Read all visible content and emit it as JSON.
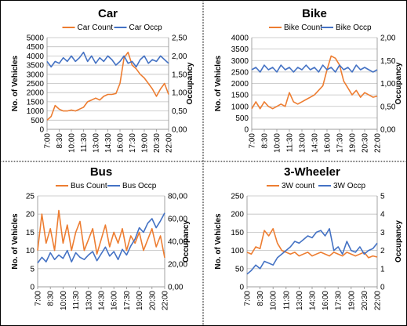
{
  "chart_data": [
    {
      "type": "line",
      "title": "Car",
      "xlabel": "",
      "ylabel": "No. of Vehicles",
      "y2label": "Occupancy",
      "ylim": [
        0,
        5000
      ],
      "yticks": [
        "0",
        "500",
        "1000",
        "1500",
        "2000",
        "2500",
        "3000",
        "3500",
        "4000",
        "4500",
        "5000"
      ],
      "y2lim": [
        0,
        2.5
      ],
      "y2ticks": [
        "0,00",
        "0,50",
        "1,00",
        "1,50",
        "2,00",
        "2,50"
      ],
      "grid": "horizontal",
      "legend_position": "top",
      "x_tick_labels": [
        "7:00",
        "8:30",
        "10:00",
        "11:30",
        "13:00",
        "14:30",
        "16:00",
        "17:30",
        "19:00",
        "20:30",
        "22:00"
      ],
      "x_range": [
        0,
        60
      ],
      "series": [
        {
          "name": "Car Count",
          "axis": "left",
          "color": "#ED7D31",
          "x": [
            0,
            2,
            4,
            6,
            8,
            10,
            12,
            14,
            16,
            18,
            20,
            22,
            24,
            26,
            28,
            30,
            32,
            34,
            36,
            38,
            40,
            42,
            44,
            46,
            48,
            50,
            52,
            54,
            56,
            58,
            60
          ],
          "y": [
            500,
            700,
            1300,
            1100,
            1000,
            1000,
            1050,
            1000,
            1100,
            1200,
            1500,
            1600,
            1700,
            1600,
            1800,
            1900,
            1900,
            1950,
            2500,
            3900,
            4200,
            3500,
            3300,
            3000,
            2800,
            2500,
            2200,
            1800,
            2200,
            2500,
            1900
          ]
        },
        {
          "name": "Car Occp",
          "axis": "right",
          "color": "#4472C4",
          "x": [
            0,
            2,
            4,
            6,
            8,
            10,
            12,
            14,
            16,
            18,
            20,
            22,
            24,
            26,
            28,
            30,
            32,
            34,
            36,
            38,
            40,
            42,
            44,
            46,
            48,
            50,
            52,
            54,
            56,
            58,
            60
          ],
          "y": [
            1.85,
            1.7,
            1.85,
            1.8,
            1.95,
            1.85,
            2.0,
            1.85,
            1.95,
            2.1,
            1.85,
            2.0,
            1.8,
            1.95,
            1.85,
            2.0,
            1.9,
            1.75,
            1.85,
            2.0,
            1.8,
            1.85,
            1.7,
            1.9,
            2.0,
            1.8,
            1.9,
            1.85,
            2.0,
            1.9,
            1.8
          ]
        }
      ]
    },
    {
      "type": "line",
      "title": "Bike",
      "xlabel": "",
      "ylabel": "No. of Vehicles",
      "y2label": "Occupancy",
      "ylim": [
        0,
        4000
      ],
      "yticks": [
        "0",
        "500",
        "1000",
        "1500",
        "2000",
        "2500",
        "3000",
        "3500",
        "4000"
      ],
      "y2lim": [
        0,
        2.0
      ],
      "y2ticks": [
        "0,00",
        "0,50",
        "1,00",
        "1,50",
        "2,00"
      ],
      "grid": "horizontal",
      "legend_position": "top",
      "x_tick_labels": [
        "7:00",
        "8:30",
        "10:00",
        "11:30",
        "13:00",
        "14:30",
        "16:00",
        "17:30",
        "19:00",
        "20:30",
        "22:00"
      ],
      "x_range": [
        0,
        60
      ],
      "series": [
        {
          "name": "Bike Count",
          "axis": "left",
          "color": "#ED7D31",
          "x": [
            0,
            2,
            4,
            6,
            8,
            10,
            12,
            14,
            16,
            18,
            20,
            22,
            24,
            26,
            28,
            30,
            32,
            34,
            36,
            38,
            40,
            42,
            44,
            46,
            48,
            50,
            52,
            54,
            56,
            58,
            60
          ],
          "y": [
            900,
            1200,
            900,
            1200,
            1000,
            900,
            1000,
            1100,
            1000,
            1600,
            1200,
            1100,
            1200,
            1300,
            1400,
            1500,
            1700,
            1900,
            2600,
            3200,
            3100,
            2800,
            2100,
            1800,
            1500,
            1700,
            1400,
            1600,
            1500,
            1400,
            1450
          ]
        },
        {
          "name": "Bike Occp",
          "axis": "right",
          "color": "#4472C4",
          "x": [
            0,
            2,
            4,
            6,
            8,
            10,
            12,
            14,
            16,
            18,
            20,
            22,
            24,
            26,
            28,
            30,
            32,
            34,
            36,
            38,
            40,
            42,
            44,
            46,
            48,
            50,
            52,
            54,
            56,
            58,
            60
          ],
          "y": [
            1.3,
            1.35,
            1.25,
            1.4,
            1.3,
            1.35,
            1.25,
            1.4,
            1.3,
            1.35,
            1.25,
            1.35,
            1.3,
            1.4,
            1.3,
            1.35,
            1.25,
            1.4,
            1.3,
            1.35,
            1.25,
            1.4,
            1.3,
            1.35,
            1.25,
            1.4,
            1.3,
            1.35,
            1.3,
            1.25,
            1.3
          ]
        }
      ]
    },
    {
      "type": "line",
      "title": "Bus",
      "xlabel": "",
      "ylabel": "No. of Vehicles",
      "y2label": "Occupancy",
      "ylim": [
        0,
        25
      ],
      "yticks": [
        "0",
        "5",
        "10",
        "15",
        "20",
        "25"
      ],
      "y2lim": [
        0,
        80
      ],
      "y2ticks": [
        "0,00",
        "20,00",
        "40,00",
        "60,00",
        "80,00"
      ],
      "grid": "horizontal",
      "legend_position": "top",
      "x_tick_labels": [
        "7:00",
        "8:30",
        "10:00",
        "11:30",
        "13:00",
        "14:30",
        "16:00",
        "17:30",
        "19:00",
        "20:30",
        "22:00"
      ],
      "x_range": [
        0,
        60
      ],
      "series": [
        {
          "name": "Bus Count",
          "axis": "left",
          "color": "#ED7D31",
          "x": [
            0,
            2,
            4,
            6,
            8,
            10,
            12,
            14,
            16,
            18,
            20,
            22,
            24,
            26,
            28,
            30,
            32,
            34,
            36,
            38,
            40,
            42,
            44,
            46,
            48,
            50,
            52,
            54,
            56,
            58,
            60
          ],
          "y": [
            10,
            20,
            12,
            16,
            10,
            21,
            12,
            17,
            10,
            15,
            18,
            10,
            13,
            16,
            9,
            13,
            17,
            11,
            15,
            12,
            16,
            10,
            14,
            12,
            15,
            10,
            13,
            16,
            11,
            14,
            8
          ]
        },
        {
          "name": "Bus Occp",
          "axis": "right",
          "color": "#4472C4",
          "x": [
            0,
            2,
            4,
            6,
            8,
            10,
            12,
            14,
            16,
            18,
            20,
            22,
            24,
            26,
            28,
            30,
            32,
            34,
            36,
            38,
            40,
            42,
            44,
            46,
            48,
            50,
            52,
            54,
            56,
            58,
            60
          ],
          "y": [
            21,
            26,
            22,
            30,
            24,
            28,
            25,
            32,
            22,
            30,
            26,
            24,
            28,
            31,
            23,
            29,
            35,
            27,
            31,
            24,
            33,
            28,
            36,
            42,
            52,
            48,
            56,
            60,
            52,
            58,
            65
          ]
        }
      ]
    },
    {
      "type": "line",
      "title": "3-Wheeler",
      "xlabel": "",
      "ylabel": "No. of Vehicles",
      "y2label": "Occupancy",
      "ylim": [
        0,
        250
      ],
      "yticks": [
        "0",
        "50",
        "100",
        "150",
        "200",
        "250"
      ],
      "y2lim": [
        0,
        5
      ],
      "y2ticks": [
        "0",
        "1",
        "2",
        "3",
        "4",
        "5"
      ],
      "grid": "horizontal",
      "legend_position": "top",
      "x_tick_labels": [
        "7:00",
        "8:30",
        "10:00",
        "11:30",
        "13:00",
        "14:30",
        "16:00",
        "17:30",
        "19:00",
        "20:30",
        "22:00"
      ],
      "x_range": [
        0,
        60
      ],
      "series": [
        {
          "name": "3W count",
          "axis": "left",
          "color": "#ED7D31",
          "x": [
            0,
            2,
            4,
            6,
            8,
            10,
            12,
            14,
            16,
            18,
            20,
            22,
            24,
            26,
            28,
            30,
            32,
            34,
            36,
            38,
            40,
            42,
            44,
            46,
            48,
            50,
            52,
            54,
            56,
            58,
            60
          ],
          "y": [
            95,
            90,
            110,
            105,
            155,
            140,
            160,
            120,
            100,
            95,
            90,
            95,
            85,
            90,
            95,
            85,
            90,
            95,
            90,
            85,
            95,
            90,
            85,
            95,
            90,
            85,
            90,
            95,
            80,
            85,
            82
          ]
        },
        {
          "name": "3W Occp",
          "axis": "right",
          "color": "#4472C4",
          "x": [
            0,
            2,
            4,
            6,
            8,
            10,
            12,
            14,
            16,
            18,
            20,
            22,
            24,
            26,
            28,
            30,
            32,
            34,
            36,
            38,
            40,
            42,
            44,
            46,
            48,
            50,
            52,
            54,
            56,
            58,
            60
          ],
          "y": [
            0.7,
            0.9,
            1.2,
            1.0,
            1.4,
            1.3,
            1.2,
            1.6,
            1.8,
            2.0,
            2.2,
            2.5,
            2.4,
            2.6,
            2.8,
            2.7,
            3.0,
            3.1,
            2.8,
            3.2,
            2.0,
            2.2,
            1.8,
            2.5,
            2.0,
            1.9,
            2.2,
            1.8,
            2.0,
            2.1,
            2.4
          ]
        }
      ]
    }
  ]
}
